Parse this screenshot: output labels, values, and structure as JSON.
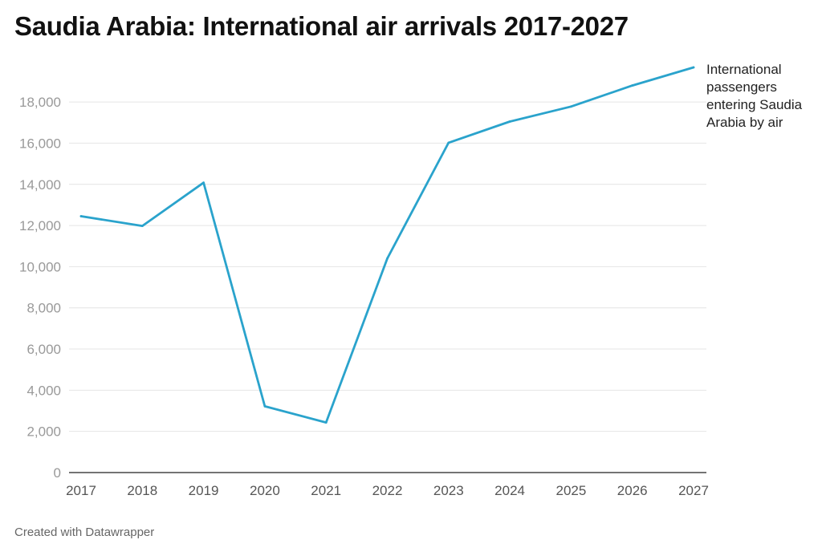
{
  "footer": "Created with Datawrapper",
  "colors": {
    "line": "#2aa3cc",
    "grid": "#e4e4e4",
    "axis": "#222222",
    "tick_text": "#999999",
    "xtick_text": "#555555"
  },
  "chart_data": {
    "type": "line",
    "title": "Saudia Arabia: International air arrivals 2017-2027",
    "xlabel": "",
    "ylabel": "",
    "x": [
      "2017",
      "2018",
      "2019",
      "2020",
      "2021",
      "2022",
      "2023",
      "2024",
      "2025",
      "2026",
      "2027"
    ],
    "series": [
      {
        "name": "International passengers entering Saudia Arabia by air",
        "values": [
          12450,
          11980,
          14080,
          3220,
          2430,
          10400,
          16020,
          17050,
          17780,
          18800,
          19680
        ]
      }
    ],
    "ylim": [
      0,
      19680
    ],
    "yticks": [
      0,
      2000,
      4000,
      6000,
      8000,
      10000,
      12000,
      14000,
      16000,
      18000
    ],
    "ytick_labels": [
      "0",
      "2,000",
      "4,000",
      "6,000",
      "8,000",
      "10,000",
      "12,000",
      "14,000",
      "16,000",
      "18,000"
    ],
    "grid": true,
    "legend": "direct label at end of line"
  }
}
